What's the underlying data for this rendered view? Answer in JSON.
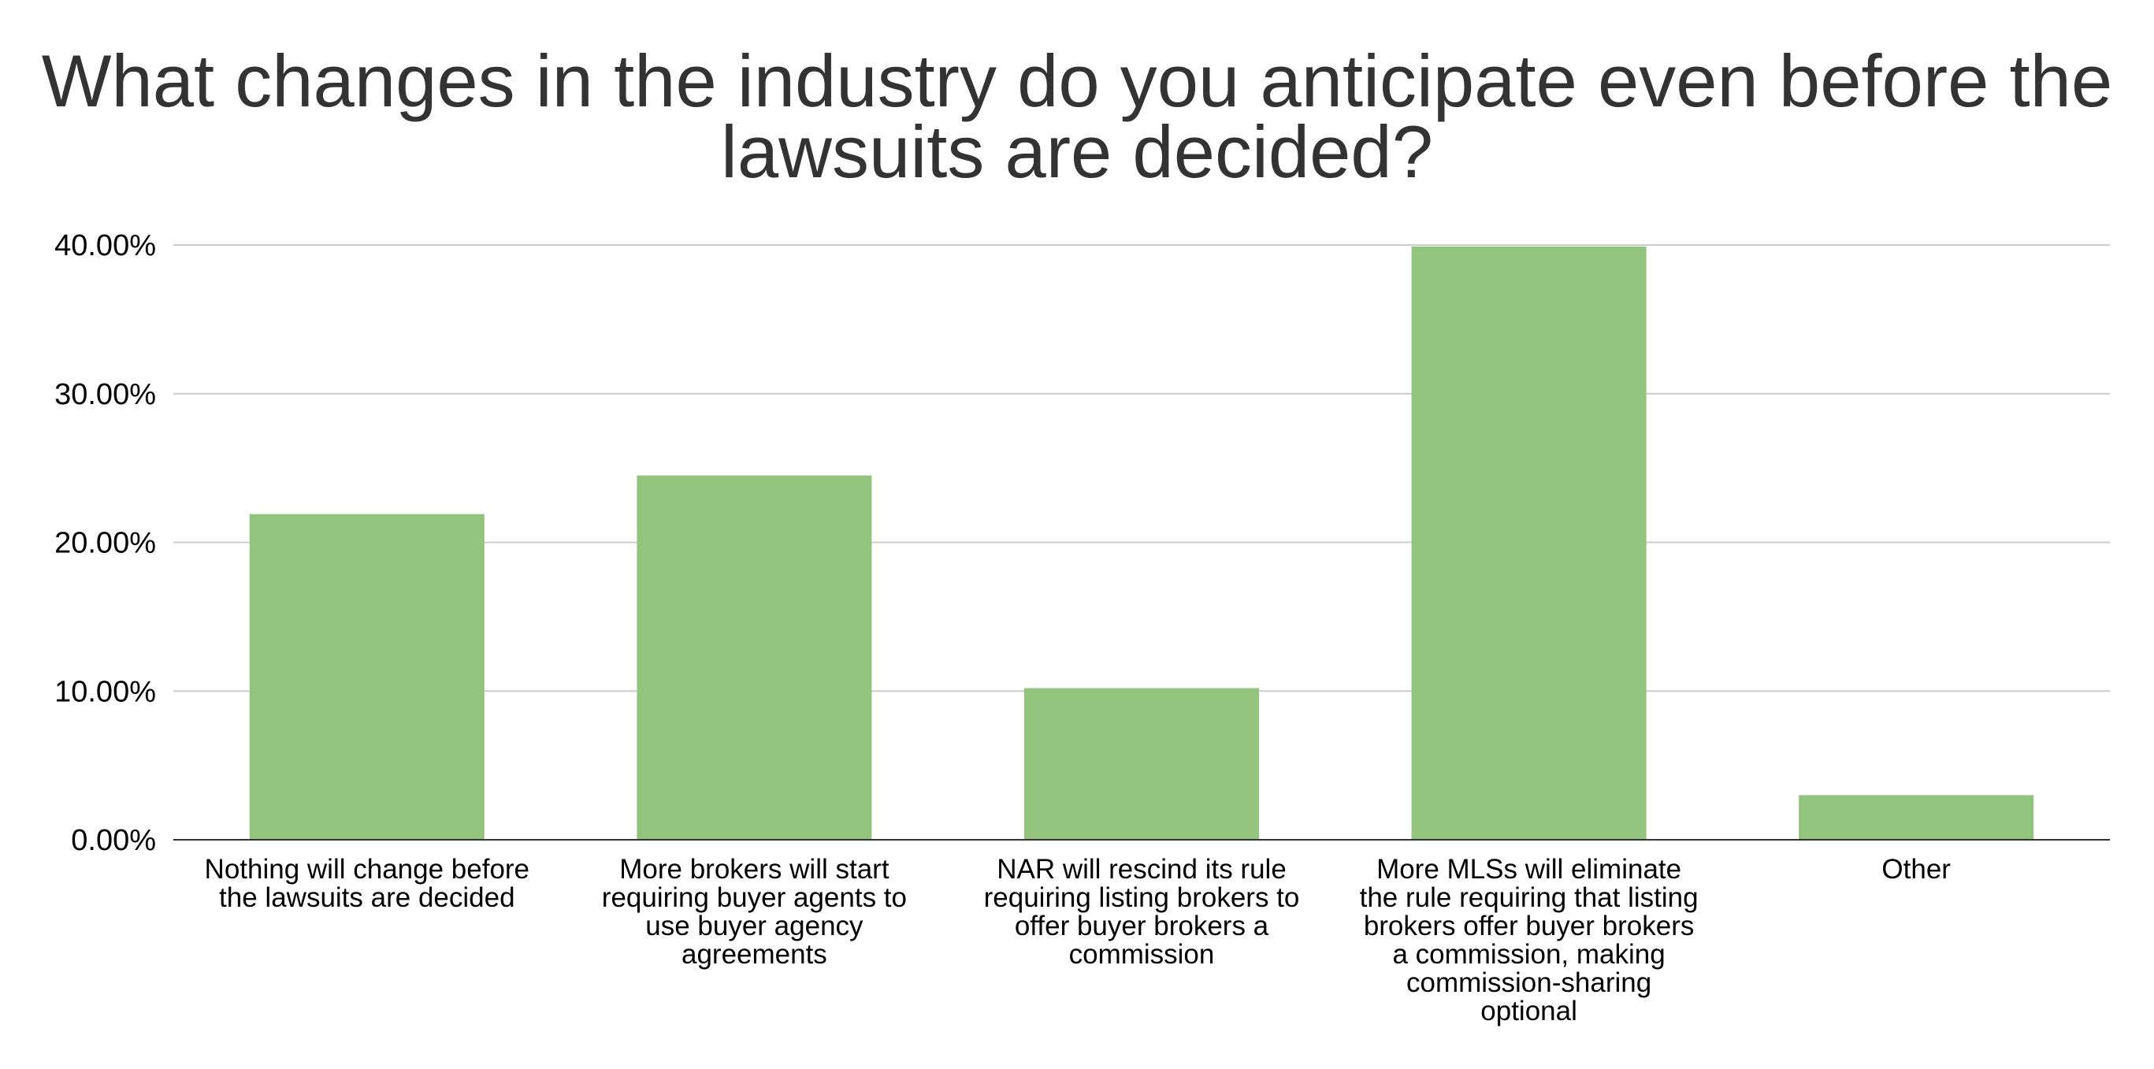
{
  "chart_data": {
    "type": "bar",
    "title_lines": [
      "What changes in the industry do you anticipate even before the",
      "lawsuits are decided?"
    ],
    "categories": [
      [
        "Nothing will change before",
        "the lawsuits are decided"
      ],
      [
        "More brokers will start",
        "requiring buyer agents to",
        "use buyer agency",
        "agreements"
      ],
      [
        "NAR will rescind its rule",
        "requiring listing brokers to",
        "offer buyer brokers a",
        "commission"
      ],
      [
        "More MLSs will eliminate",
        "the rule requiring that listing",
        "brokers offer buyer brokers",
        "a commission, making",
        "commission-sharing",
        "optional"
      ],
      [
        "Other"
      ]
    ],
    "values": [
      21.9,
      24.5,
      10.2,
      39.9,
      3.0
    ],
    "ylim": [
      0,
      40
    ],
    "yticks": [
      0,
      10,
      20,
      30,
      40
    ],
    "ytick_labels": [
      "0.00%",
      "10.00%",
      "20.00%",
      "30.00%",
      "40.00%"
    ],
    "xlabel": "",
    "ylabel": "",
    "grid": true,
    "legend": "none",
    "bar_color": "#93c47d",
    "gridline_color": "#cccccc",
    "axis_color": "#333333"
  }
}
